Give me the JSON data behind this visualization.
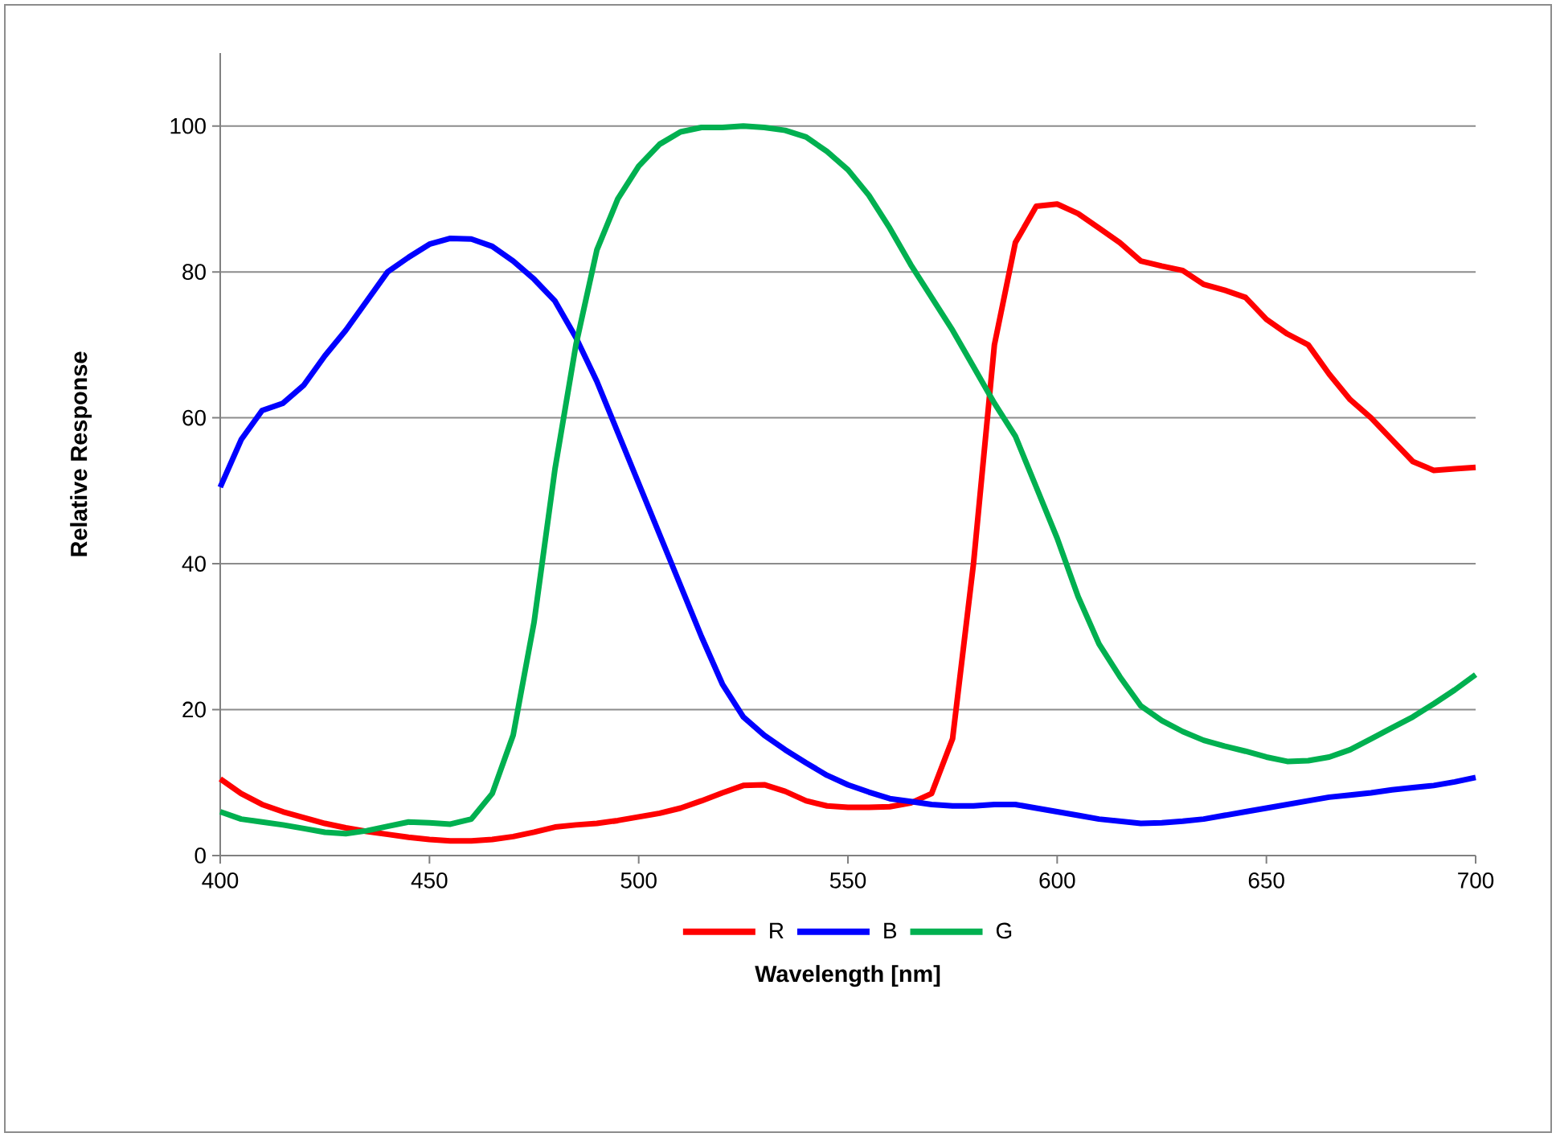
{
  "chart_data": {
    "type": "line",
    "xlabel": "Wavelength [nm]",
    "ylabel": "Relative Response",
    "x": [
      400,
      405,
      410,
      415,
      420,
      425,
      430,
      435,
      440,
      445,
      450,
      455,
      460,
      465,
      470,
      475,
      480,
      485,
      490,
      495,
      500,
      505,
      510,
      515,
      520,
      525,
      530,
      535,
      540,
      545,
      550,
      555,
      560,
      565,
      570,
      575,
      580,
      585,
      590,
      595,
      600,
      605,
      610,
      615,
      620,
      625,
      630,
      635,
      640,
      645,
      650,
      655,
      660,
      665,
      670,
      675,
      680,
      685,
      690,
      695,
      700
    ],
    "series": [
      {
        "name": "R",
        "color": "#ff0000",
        "values": [
          10.5,
          8.5,
          7,
          6,
          5.2,
          4.4,
          3.8,
          3.3,
          2.9,
          2.5,
          2.2,
          2.0,
          2.0,
          2.2,
          2.6,
          3.2,
          3.9,
          4.2,
          4.4,
          4.8,
          5.3,
          5.8,
          6.5,
          7.5,
          8.6,
          9.6,
          9.7,
          8.8,
          7.5,
          6.8,
          6.6,
          6.6,
          6.7,
          7.2,
          8.5,
          16,
          40,
          70,
          84,
          89,
          89.3,
          88,
          86,
          84,
          81.5,
          80.8,
          80.2,
          78.3,
          77.5,
          76.5,
          73.5,
          71.5,
          70,
          66,
          62.5,
          60,
          57,
          54,
          52.8,
          53,
          53.2
        ]
      },
      {
        "name": "B",
        "color": "#0000ff",
        "values": [
          50.5,
          57,
          61,
          62,
          64.5,
          68.5,
          72,
          76,
          80,
          82,
          83.8,
          84.6,
          84.5,
          83.5,
          81.5,
          79,
          76,
          71,
          65,
          58,
          51,
          44,
          37,
          30,
          23.5,
          19,
          16.5,
          14.5,
          12.7,
          11,
          9.7,
          8.7,
          7.8,
          7.4,
          7.0,
          6.8,
          6.8,
          7.0,
          7.0,
          6.5,
          6.0,
          5.5,
          5.0,
          4.7,
          4.4,
          4.5,
          4.7,
          5.0,
          5.5,
          6.0,
          6.5,
          7.0,
          7.5,
          8.0,
          8.3,
          8.6,
          9.0,
          9.3,
          9.6,
          10.1,
          10.7
        ]
      },
      {
        "name": "G",
        "color": "#00b050",
        "values": [
          6,
          5,
          4.6,
          4.2,
          3.7,
          3.2,
          3.0,
          3.4,
          4.0,
          4.6,
          4.5,
          4.3,
          5.0,
          8.5,
          16.5,
          32,
          53,
          70,
          83,
          90,
          94.5,
          97.5,
          99.2,
          99.8,
          99.8,
          100,
          99.8,
          99.4,
          98.5,
          96.5,
          94,
          90.5,
          86,
          81,
          76.5,
          72,
          67,
          62,
          57.5,
          50.5,
          43.5,
          35.5,
          29,
          24.5,
          20.5,
          18.5,
          17,
          15.8,
          15,
          14.3,
          13.5,
          12.9,
          13.0,
          13.5,
          14.5,
          16,
          17.5,
          19,
          20.8,
          22.7,
          24.8
        ]
      }
    ],
    "xlim": [
      400,
      700
    ],
    "xticks": [
      400,
      450,
      500,
      550,
      600,
      650,
      700
    ],
    "ylim": [
      0,
      110
    ],
    "yticks": [
      0,
      20,
      40,
      60,
      80,
      100
    ],
    "grid": "y",
    "legend": "bottom",
    "marker": "none",
    "line_style": "solid"
  }
}
